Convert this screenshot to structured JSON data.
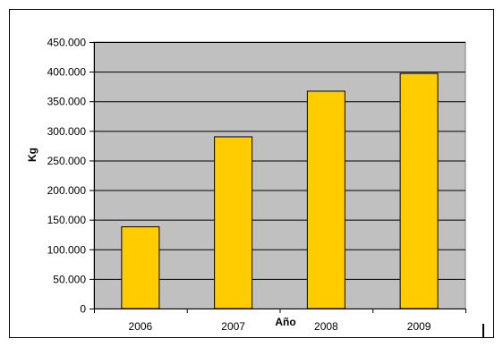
{
  "chart_data": {
    "type": "bar",
    "categories": [
      "2006",
      "2007",
      "2008",
      "2009"
    ],
    "values": [
      138000,
      290000,
      367000,
      397000
    ],
    "xlabel": "Año",
    "ylabel": "Kg",
    "ylim": [
      0,
      450000
    ],
    "y_ticks": [
      "0",
      "50.000",
      "100.000",
      "150.000",
      "200.000",
      "250.000",
      "300.000",
      "350.000",
      "400.000",
      "450.000"
    ],
    "grid": true,
    "legend": "none",
    "colors": {
      "bar_fill": "#FFCC00",
      "bar_stroke": "#000000",
      "plot_background": "#C0C0C0",
      "grid": "#000000"
    }
  }
}
